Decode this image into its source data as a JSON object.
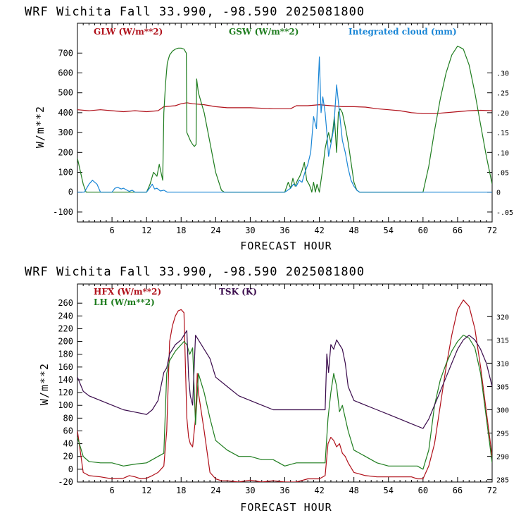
{
  "colors": {
    "red": "#b0101a",
    "green": "#1f7d1f",
    "blue": "#1a86d6",
    "purple": "#3a0b4c",
    "axis": "#000000"
  },
  "chart_data": [
    {
      "type": "line",
      "title": "WRF  Wichita Fall  33.990, -98.590  2025081800",
      "xlabel": "FORECAST HOUR",
      "ylabel": "W/m**2",
      "xlim": [
        0,
        72
      ],
      "ylim": [
        -150,
        850
      ],
      "y2lim": [
        -0.075,
        0.425
      ],
      "x_ticks": [
        "6",
        "12",
        "18",
        "24",
        "30",
        "36",
        "42",
        "48",
        "54",
        "60",
        "66",
        "72"
      ],
      "y_ticks": [
        "-100",
        "0",
        "100",
        "200",
        "300",
        "400",
        "500",
        "600",
        "700"
      ],
      "y2_ticks": [
        "-.05",
        "0",
        ".05",
        ".10",
        ".15",
        ".20",
        ".25",
        ".30"
      ],
      "series": [
        {
          "name": "GLW (W/m**2)",
          "axis": "left",
          "x": [
            0,
            2,
            4,
            6,
            8,
            10,
            12,
            14,
            15,
            17,
            18,
            19,
            20,
            22,
            24,
            26,
            30,
            34,
            37,
            38,
            40,
            42,
            44,
            46,
            48,
            50,
            52,
            54,
            56,
            58,
            60,
            62,
            64,
            66,
            68,
            70,
            72
          ],
          "y": [
            415,
            410,
            415,
            410,
            405,
            410,
            405,
            410,
            430,
            435,
            445,
            450,
            445,
            440,
            430,
            425,
            425,
            420,
            420,
            435,
            435,
            440,
            435,
            430,
            430,
            428,
            420,
            415,
            410,
            400,
            395,
            395,
            400,
            405,
            410,
            412,
            410
          ]
        },
        {
          "name": "GSW (W/m**2)",
          "axis": "left",
          "x": [
            0,
            1,
            1.5,
            12,
            12.6,
            13.2,
            13.8,
            14.2,
            14.8,
            15,
            15.3,
            15.6,
            16,
            16.5,
            17,
            17.5,
            18,
            18.5,
            18.9,
            19,
            19.3,
            19.6,
            20,
            20.3,
            20.6,
            20.7,
            21,
            22,
            23,
            24,
            25,
            25.5,
            26,
            36,
            36.6,
            37,
            37.4,
            37.8,
            38.2,
            38.6,
            39,
            39.4,
            39.8,
            40.2,
            40.5,
            40.7,
            41,
            41.3,
            41.6,
            42,
            42.3,
            42.6,
            43,
            43.3,
            43.6,
            44,
            44.3,
            44.6,
            45,
            45.3,
            45.6,
            46,
            46.5,
            47,
            47.5,
            48,
            48.5,
            49,
            60,
            61,
            62,
            63,
            64,
            65,
            66,
            67,
            68,
            69,
            70,
            71,
            72
          ],
          "y": [
            170,
            40,
            0,
            0,
            40,
            100,
            80,
            140,
            60,
            400,
            550,
            650,
            690,
            710,
            720,
            725,
            725,
            720,
            700,
            300,
            280,
            260,
            240,
            230,
            240,
            570,
            500,
            400,
            250,
            100,
            10,
            0,
            0,
            0,
            50,
            20,
            70,
            30,
            60,
            80,
            110,
            150,
            60,
            40,
            20,
            0,
            50,
            0,
            40,
            0,
            60,
            120,
            220,
            260,
            300,
            250,
            300,
            380,
            200,
            400,
            420,
            400,
            330,
            250,
            150,
            50,
            10,
            0,
            0,
            130,
            310,
            470,
            600,
            690,
            735,
            720,
            640,
            500,
            340,
            180,
            40
          ]
        },
        {
          "name": "Integrated cloud (mm)",
          "axis": "right",
          "x": [
            0,
            1.2,
            2,
            2.6,
            3.4,
            4,
            4.8,
            6,
            6.5,
            7,
            7.6,
            8,
            8.6,
            9,
            9.5,
            10,
            12,
            12.5,
            13,
            13.4,
            13.8,
            14.4,
            15,
            15.6,
            16,
            36,
            37,
            37.5,
            38,
            38.5,
            39,
            39.5,
            40,
            40.5,
            41,
            41.5,
            42,
            42.3,
            42.6,
            43,
            43.3,
            43.6,
            44,
            44.5,
            45,
            45.5,
            46,
            46.5,
            47,
            47.5,
            48,
            48.5,
            49,
            72
          ],
          "y": [
            0,
            0,
            0.02,
            0.03,
            0.02,
            0,
            0,
            0,
            0.01,
            0.012,
            0.008,
            0.01,
            0.005,
            0.002,
            0.005,
            0,
            0,
            0.01,
            0.02,
            0.008,
            0.01,
            0.003,
            0.005,
            0,
            0,
            0,
            0.01,
            0.02,
            0.015,
            0.03,
            0.025,
            0.05,
            0.07,
            0.1,
            0.19,
            0.16,
            0.34,
            0.2,
            0.24,
            0.2,
            0.15,
            0.09,
            0.12,
            0.16,
            0.27,
            0.2,
            0.13,
            0.1,
            0.06,
            0.03,
            0.015,
            0.005,
            0,
            0
          ]
        }
      ]
    },
    {
      "type": "line",
      "title": "WRF  Wichita Fall  33.990, -98.590  2025081800",
      "xlabel": "FORECAST HOUR",
      "ylabel": "W/m**2",
      "xlim": [
        0,
        72
      ],
      "ylim": [
        -20,
        290
      ],
      "y2lim": [
        284.5,
        327
      ],
      "x_ticks": [
        "6",
        "12",
        "18",
        "24",
        "30",
        "36",
        "42",
        "48",
        "54",
        "60",
        "66",
        "72"
      ],
      "y_ticks": [
        "-20",
        "0",
        "20",
        "40",
        "60",
        "80",
        "100",
        "120",
        "140",
        "160",
        "180",
        "200",
        "220",
        "240",
        "260"
      ],
      "y2_ticks": [
        "285",
        "290",
        "295",
        "300",
        "305",
        "310",
        "315",
        "320"
      ],
      "series": [
        {
          "name": "HFX (W/m**2)",
          "axis": "left",
          "x": [
            0,
            1,
            2,
            4,
            6,
            8,
            9,
            10,
            11,
            12,
            13,
            14,
            15,
            15.5,
            16,
            16.5,
            17,
            17.5,
            18,
            18.5,
            19,
            19.3,
            19.6,
            20,
            20.5,
            20.8,
            21,
            22,
            23,
            24,
            25,
            26,
            28,
            30,
            32,
            34,
            36,
            38,
            40,
            42,
            43,
            43.5,
            44,
            44.5,
            45,
            45.5,
            46,
            46.5,
            47,
            48,
            50,
            52,
            54,
            56,
            58,
            59,
            60,
            61,
            62,
            63,
            64,
            65,
            66,
            67,
            68,
            69,
            70,
            71,
            72
          ],
          "y": [
            60,
            -5,
            -10,
            -12,
            -15,
            -14,
            -10,
            -12,
            -15,
            -14,
            -10,
            -5,
            5,
            60,
            200,
            225,
            240,
            248,
            250,
            245,
            80,
            50,
            40,
            35,
            80,
            150,
            120,
            60,
            -5,
            -15,
            -18,
            -18,
            -20,
            -17,
            -20,
            -18,
            -20,
            -20,
            -15,
            -15,
            -10,
            40,
            50,
            45,
            35,
            40,
            25,
            20,
            10,
            -5,
            -10,
            -12,
            -12,
            -12,
            -12,
            -15,
            -15,
            5,
            40,
            100,
            160,
            210,
            250,
            265,
            255,
            220,
            160,
            90,
            20
          ]
        },
        {
          "name": "LH (W/m**2)",
          "axis": "left",
          "x": [
            0,
            1,
            2,
            4,
            6,
            8,
            10,
            12,
            13,
            14,
            15,
            15.5,
            16,
            17,
            18,
            18.5,
            19,
            19.5,
            20,
            20.5,
            21,
            22,
            23,
            24,
            26,
            28,
            30,
            32,
            34,
            36,
            38,
            40,
            42,
            43,
            43.5,
            44,
            44.5,
            45,
            45.5,
            46,
            46.5,
            47,
            48,
            50,
            52,
            54,
            56,
            58,
            59,
            60,
            61,
            62,
            63,
            64,
            65,
            66,
            67,
            68,
            69,
            70,
            71,
            72
          ],
          "y": [
            50,
            20,
            12,
            10,
            10,
            5,
            8,
            10,
            15,
            20,
            25,
            150,
            170,
            185,
            195,
            200,
            195,
            180,
            190,
            70,
            150,
            120,
            80,
            45,
            30,
            20,
            20,
            15,
            15,
            5,
            10,
            10,
            10,
            10,
            80,
            120,
            150,
            130,
            90,
            100,
            80,
            60,
            30,
            20,
            10,
            5,
            5,
            5,
            5,
            0,
            30,
            100,
            140,
            165,
            185,
            200,
            210,
            205,
            190,
            150,
            80,
            10
          ]
        },
        {
          "name": "TSK (K)",
          "axis": "right",
          "x": [
            0,
            1,
            2,
            4,
            6,
            8,
            10,
            12,
            13,
            14,
            15,
            15.5,
            16,
            17,
            18,
            18.5,
            19,
            19.3,
            19.6,
            20,
            20.5,
            21,
            22,
            23,
            24,
            26,
            28,
            30,
            32,
            34,
            36,
            38,
            40,
            42,
            43,
            43.3,
            43.6,
            44,
            44.5,
            45,
            45.5,
            46,
            46.5,
            47,
            48,
            50,
            52,
            54,
            56,
            58,
            60,
            61,
            62,
            63,
            64,
            65,
            66,
            67,
            68,
            69,
            70,
            71,
            72
          ],
          "y": [
            307,
            304,
            303,
            302,
            301,
            300,
            299.5,
            299,
            300,
            302,
            308,
            309,
            312,
            314,
            315,
            316,
            317,
            307,
            303,
            301,
            316,
            315,
            313,
            311,
            307,
            305,
            303,
            302,
            301,
            300,
            300,
            300,
            300,
            300,
            300,
            312,
            308,
            314,
            313,
            315,
            314,
            313,
            310,
            305,
            302,
            301,
            300,
            299,
            298,
            297,
            296,
            298,
            301,
            304,
            307,
            310,
            313,
            315,
            316,
            315,
            313,
            310,
            305
          ]
        }
      ]
    }
  ],
  "panels": [
    {
      "header": "WRF  Wichita Fall  33.990, -98.590  2025081800",
      "xlabel": "FORECAST HOUR",
      "ylabel": "W/m**2",
      "legend": [
        {
          "label": "GLW (W/m**2)",
          "color": "#b0101a"
        },
        {
          "label": "GSW (W/m**2)",
          "color": "#1f7d1f"
        },
        {
          "label": "Integrated cloud (mm)",
          "color": "#1a86d6"
        }
      ]
    },
    {
      "header": "WRF  Wichita Fall  33.990, -98.590  2025081800",
      "xlabel": "FORECAST HOUR",
      "ylabel": "W/m**2",
      "legend": [
        {
          "label": "HFX (W/m**2)",
          "color": "#b0101a"
        },
        {
          "label": "LH  (W/m**2)",
          "color": "#1f7d1f"
        },
        {
          "label": "TSK (K)",
          "color": "#3a0b4c"
        }
      ]
    }
  ]
}
